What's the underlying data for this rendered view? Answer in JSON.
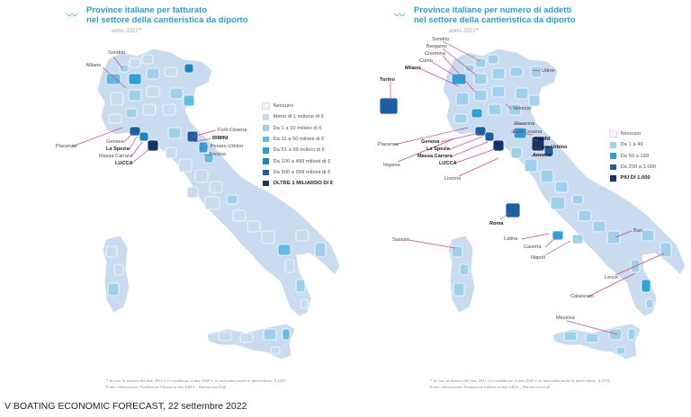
{
  "colors": {
    "nessuno": "#f3f5f8",
    "scale1": "#c9dbee",
    "scale2": "#9fd2ea",
    "scale3": "#63bbe3",
    "scale4": "#29a2da",
    "scale5": "#1a86c4",
    "scale6": "#1a5ea3",
    "scale7": "#15336d",
    "leader_line": "#d6428c",
    "title": "#2a9fd6"
  },
  "left": {
    "title_line1_prefix": "Province italiane per ",
    "title_line1_bold": "fatturato",
    "title_line2": "nel settore della cantieristica da diporto",
    "subtitle": "anno 2021*",
    "legend": [
      {
        "label": "Nessuno",
        "color": "#f3f5f8"
      },
      {
        "label": "Meno di 1 milione di €",
        "color": "#c9dbee"
      },
      {
        "label": "Da 1 a 10 milioni di €",
        "color": "#9fd2ea"
      },
      {
        "label": "Da 11 a 50 milioni di €",
        "color": "#63bbe3"
      },
      {
        "label": "Da 51 a 99 milioni di €",
        "color": "#29a2da"
      },
      {
        "label": "Da 100 a 499 milioni di €",
        "color": "#1a86c4"
      },
      {
        "label": "Da 500 a 999 milioni di €",
        "color": "#1a5ea3"
      },
      {
        "label": "OLTRE 1 MILIARDO DI €",
        "color": "#15336d",
        "strong": true
      }
    ],
    "places": [
      {
        "name": "Sondrio",
        "bold": false
      },
      {
        "name": "Milano",
        "bold": false
      },
      {
        "name": "Forlì-Cesena",
        "bold": false
      },
      {
        "name": "RIMINI",
        "bold": true
      },
      {
        "name": "Pesaro-Urbino",
        "bold": false
      },
      {
        "name": "Ancona",
        "bold": false
      },
      {
        "name": "Piacenza",
        "bold": false
      },
      {
        "name": "Genova",
        "bold": false
      },
      {
        "name": "La Spezia",
        "bold": true
      },
      {
        "name": "Massa Carrara",
        "bold": false
      },
      {
        "name": "LUCCA",
        "bold": true
      }
    ],
    "footnote_line1": "* In caso di assenza del dato 2021 si è considerato il dato 2020 e, in mancanza anche di quest'ultimo, il 2019.",
    "footnote_line2": "Fonte: elaborazione Fondazione Edison su dati AIDA – Bureau van Dijk"
  },
  "right": {
    "title_line1_prefix": "Province italiane per ",
    "title_line1_bold": "numero di addetti",
    "title_line2": "nel settore della cantieristica da diporto",
    "subtitle": "anno 2021*",
    "legend": [
      {
        "label": "Nessuno",
        "color": "#f3f5f8"
      },
      {
        "label": "Da 1 a 49",
        "color": "#9fd2ea"
      },
      {
        "label": "Da 50 a 199",
        "color": "#29a2da"
      },
      {
        "label": "Da 200 a 1.000",
        "color": "#1a5ea3"
      },
      {
        "label": "PIÙ DI 1.000",
        "color": "#15336d",
        "strong": true
      }
    ],
    "places": [
      {
        "name": "Sondrio",
        "bold": false
      },
      {
        "name": "Bergamo",
        "bold": false
      },
      {
        "name": "Cremona",
        "bold": false
      },
      {
        "name": "Como",
        "bold": false
      },
      {
        "name": "Milano",
        "bold": true
      },
      {
        "name": "Udine",
        "bold": false
      },
      {
        "name": "Torino",
        "bold": true
      },
      {
        "name": "Venezia",
        "bold": false
      },
      {
        "name": "Ravenna",
        "bold": false
      },
      {
        "name": "Forlì-Cesena",
        "bold": false
      },
      {
        "name": "RIMINI",
        "bold": true
      },
      {
        "name": "Pesaro-Urbino",
        "bold": true
      },
      {
        "name": "Ancona",
        "bold": true
      },
      {
        "name": "Piacenza",
        "bold": false
      },
      {
        "name": "Genova",
        "bold": true
      },
      {
        "name": "La Spezia",
        "bold": true
      },
      {
        "name": "Massa Carrara",
        "bold": true
      },
      {
        "name": "LUCCA",
        "bold": true
      },
      {
        "name": "Imperia",
        "bold": false
      },
      {
        "name": "Livorno",
        "bold": false
      },
      {
        "name": "Roma",
        "bold": true
      },
      {
        "name": "Sassari",
        "bold": false
      },
      {
        "name": "Bari",
        "bold": false
      },
      {
        "name": "Latina",
        "bold": false
      },
      {
        "name": "Caserta",
        "bold": false
      },
      {
        "name": "Napoli",
        "bold": false
      },
      {
        "name": "Lecce",
        "bold": false
      },
      {
        "name": "Catanzaro",
        "bold": false
      },
      {
        "name": "Messina",
        "bold": false
      }
    ],
    "footnote_line1": "* In caso di assenza del dato 2021 si è considerato il dato 2020 e, in mancanza anche di quest'ultimo, il 2019.",
    "footnote_line2": "Fonte: elaborazione Fondazione Edison su dati AIDA – Bureau van Dijk"
  },
  "bottom_caption": "V BOATING ECONOMIC FORECAST, 22 settembre 2022"
}
